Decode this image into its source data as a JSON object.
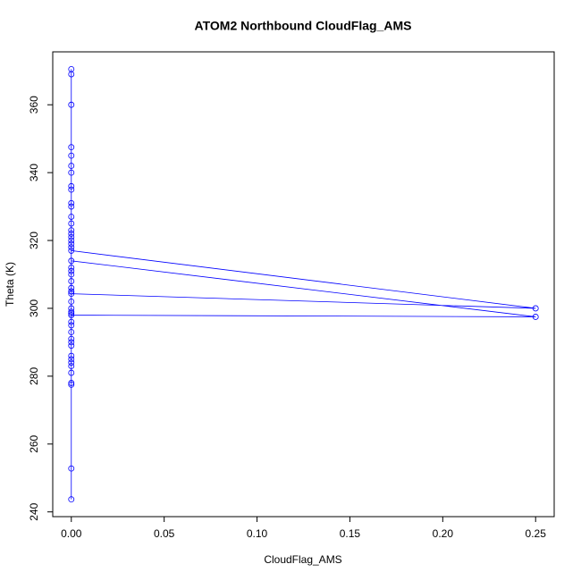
{
  "chart_data": {
    "type": "line",
    "title": "ATOM2 Northbound CloudFlag_AMS",
    "x_label": "CloudFlag_AMS",
    "y_label": "Theta (K)",
    "series": [
      {
        "color": "#0000ff",
        "x": [
          0,
          0,
          0,
          0,
          0,
          0,
          0,
          0,
          0,
          0,
          0,
          0,
          0,
          0,
          0,
          0,
          0,
          0,
          0,
          0,
          0,
          0,
          0,
          0,
          0,
          0,
          0,
          0,
          0,
          0,
          0,
          0,
          0,
          0,
          0,
          0,
          0,
          0.25,
          0,
          0,
          0,
          0,
          0,
          0.25,
          0,
          0,
          0,
          0,
          0,
          0,
          0
        ],
        "values": [
          243.7,
          252.8,
          278,
          277.5,
          285,
          290,
          291,
          283,
          281,
          286,
          295,
          298.5,
          300,
          305,
          306,
          310,
          312,
          318,
          320,
          322,
          325,
          330,
          335,
          340,
          345,
          347.5,
          360,
          369,
          370.5,
          342,
          336,
          331,
          327,
          323,
          321,
          319,
          317,
          300,
          304.3,
          308,
          311,
          305,
          314,
          297.5,
          298,
          296,
          293,
          289,
          284,
          299,
          302
        ]
      }
    ],
    "xlim": [
      -0.01,
      0.26
    ],
    "ylim": [
      238.6,
      375.6
    ],
    "xticks": [
      {
        "value": 0,
        "label": "0.00"
      },
      {
        "value": 0.05,
        "label": "0.05"
      },
      {
        "value": 0.1,
        "label": "0.10"
      },
      {
        "value": 0.15,
        "label": "0.15"
      },
      {
        "value": 0.2,
        "label": "0.20"
      },
      {
        "value": 0.25,
        "label": "0.25"
      }
    ],
    "yticks": [
      240,
      260,
      280,
      300,
      320,
      340,
      360
    ],
    "grid": false
  }
}
